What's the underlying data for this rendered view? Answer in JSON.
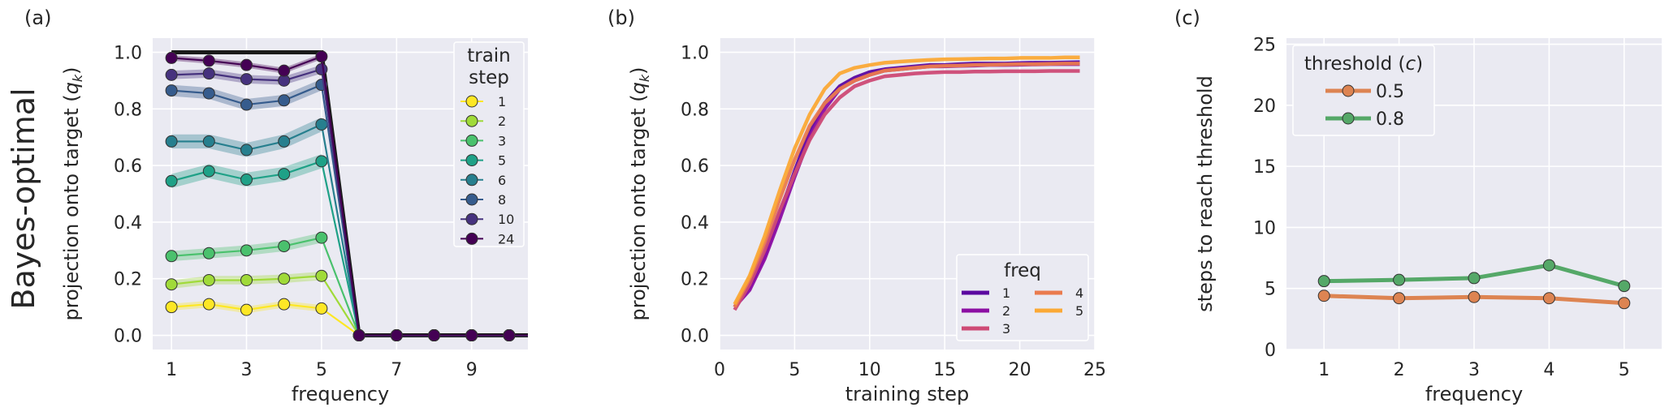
{
  "row_label": "Bayes-optimal",
  "colors": {
    "plot_bg": "#EAEAF2",
    "grid": "#FFFFFF",
    "text": "#262626",
    "target_line": "#1A1A1A"
  },
  "chart_data": [
    {
      "panel": "(a)",
      "type": "line",
      "xlabel": "frequency",
      "ylabel": "projection onto target (q_k)",
      "ylabel_main": "projection onto target (",
      "ylabel_sym": "q",
      "ylabel_sub": "k",
      "ylabel_close": ")",
      "xlim": [
        0.5,
        10.5
      ],
      "ylim": [
        -0.05,
        1.05
      ],
      "xticks": [
        1,
        3,
        5,
        7,
        9
      ],
      "xtick_labels": [
        "1",
        "3",
        "5",
        "7",
        "9"
      ],
      "yticks": [
        0.0,
        0.2,
        0.4,
        0.6,
        0.8,
        1.0
      ],
      "ytick_labels": [
        "0.0",
        "0.2",
        "0.4",
        "0.6",
        "0.8",
        "1.0"
      ],
      "legend_title_line1": "train",
      "legend_title_line2": "step",
      "target": {
        "x": [
          1,
          2,
          3,
          4,
          5,
          6,
          7,
          8,
          9,
          10,
          10.5
        ],
        "y": [
          1,
          1,
          1,
          1,
          1,
          0,
          0,
          0,
          0,
          0,
          0
        ]
      },
      "x": [
        1,
        2,
        3,
        4,
        5,
        6,
        7,
        8,
        9,
        10,
        10.5
      ],
      "series": [
        {
          "name": "1",
          "color": "#FDE725",
          "values": [
            0.1,
            0.11,
            0.09,
            0.11,
            0.095,
            0,
            0,
            0,
            0,
            0,
            0
          ],
          "band": 0.012
        },
        {
          "name": "2",
          "color": "#A0DA39",
          "values": [
            0.18,
            0.195,
            0.195,
            0.2,
            0.21,
            0,
            0,
            0,
            0,
            0,
            0
          ],
          "band": 0.015
        },
        {
          "name": "3",
          "color": "#4AC16D",
          "values": [
            0.28,
            0.29,
            0.3,
            0.315,
            0.345,
            0,
            0,
            0,
            0,
            0,
            0
          ],
          "band": 0.018
        },
        {
          "name": "5",
          "color": "#1FA187",
          "values": [
            0.545,
            0.58,
            0.55,
            0.57,
            0.615,
            0,
            0,
            0,
            0,
            0,
            0
          ],
          "band": 0.025
        },
        {
          "name": "6",
          "color": "#277F8E",
          "values": [
            0.685,
            0.685,
            0.655,
            0.685,
            0.745,
            0,
            0,
            0,
            0,
            0,
            0
          ],
          "band": 0.025
        },
        {
          "name": "8",
          "color": "#365C8D",
          "values": [
            0.865,
            0.855,
            0.815,
            0.83,
            0.885,
            0,
            0,
            0,
            0,
            0,
            0
          ],
          "band": 0.02
        },
        {
          "name": "10",
          "color": "#46327E",
          "values": [
            0.92,
            0.925,
            0.905,
            0.9,
            0.94,
            0,
            0,
            0,
            0,
            0,
            0
          ],
          "band": 0.015
        },
        {
          "name": "24",
          "color": "#440154",
          "values": [
            0.98,
            0.97,
            0.955,
            0.935,
            0.985,
            0,
            0,
            0,
            0,
            0,
            0
          ],
          "band": 0.01
        }
      ]
    },
    {
      "panel": "(b)",
      "type": "line",
      "xlabel": "training step",
      "ylabel": "projection onto target (q_k)",
      "ylabel_main": "projection onto target (",
      "ylabel_sym": "q",
      "ylabel_sub": "k",
      "ylabel_close": ")",
      "xlim": [
        0,
        25
      ],
      "ylim": [
        -0.05,
        1.05
      ],
      "xticks": [
        0,
        5,
        10,
        15,
        20,
        25
      ],
      "xtick_labels": [
        "0",
        "5",
        "10",
        "15",
        "20",
        "25"
      ],
      "yticks": [
        0.0,
        0.2,
        0.4,
        0.6,
        0.8,
        1.0
      ],
      "ytick_labels": [
        "0.0",
        "0.2",
        "0.4",
        "0.6",
        "0.8",
        "1.0"
      ],
      "legend_title": "freq",
      "x": [
        1,
        2,
        3,
        4,
        5,
        6,
        7,
        8,
        9,
        10,
        11,
        12,
        13,
        14,
        15,
        16,
        17,
        18,
        19,
        20,
        21,
        22,
        23,
        24
      ],
      "series": [
        {
          "name": "1",
          "color": "#5B08A0",
          "values": [
            0.1,
            0.17,
            0.28,
            0.43,
            0.58,
            0.72,
            0.82,
            0.88,
            0.91,
            0.93,
            0.94,
            0.945,
            0.95,
            0.955,
            0.955,
            0.958,
            0.96,
            0.96,
            0.96,
            0.962,
            0.963,
            0.963,
            0.964,
            0.965
          ]
        },
        {
          "name": "2",
          "color": "#8C0FA3",
          "values": [
            0.1,
            0.16,
            0.27,
            0.41,
            0.56,
            0.7,
            0.8,
            0.87,
            0.9,
            0.92,
            0.935,
            0.94,
            0.945,
            0.95,
            0.95,
            0.952,
            0.953,
            0.955,
            0.955,
            0.956,
            0.957,
            0.958,
            0.958,
            0.958
          ]
        },
        {
          "name": "3",
          "color": "#CE4A75",
          "values": [
            0.09,
            0.18,
            0.3,
            0.44,
            0.57,
            0.69,
            0.78,
            0.84,
            0.88,
            0.9,
            0.915,
            0.92,
            0.925,
            0.928,
            0.93,
            0.93,
            0.932,
            0.932,
            0.933,
            0.933,
            0.933,
            0.934,
            0.934,
            0.934
          ]
        },
        {
          "name": "4",
          "color": "#EA7B4D",
          "values": [
            0.1,
            0.2,
            0.33,
            0.48,
            0.62,
            0.74,
            0.82,
            0.87,
            0.9,
            0.92,
            0.935,
            0.94,
            0.945,
            0.95,
            0.952,
            0.953,
            0.955,
            0.956,
            0.957,
            0.958,
            0.958,
            0.959,
            0.96,
            0.96
          ]
        },
        {
          "name": "5",
          "color": "#FBA935",
          "values": [
            0.11,
            0.21,
            0.35,
            0.51,
            0.66,
            0.78,
            0.87,
            0.925,
            0.945,
            0.955,
            0.963,
            0.967,
            0.97,
            0.973,
            0.975,
            0.976,
            0.977,
            0.978,
            0.978,
            0.98,
            0.98,
            0.98,
            0.982,
            0.982
          ]
        }
      ]
    },
    {
      "panel": "(c)",
      "type": "line",
      "xlabel": "frequency",
      "ylabel": "steps to reach threshold",
      "xlim": [
        0.5,
        5.5
      ],
      "ylim": [
        0,
        25.5
      ],
      "xticks": [
        1,
        2,
        3,
        4,
        5
      ],
      "xtick_labels": [
        "1",
        "2",
        "3",
        "4",
        "5"
      ],
      "yticks": [
        0,
        5,
        10,
        15,
        20,
        25
      ],
      "ytick_labels": [
        "0",
        "5",
        "10",
        "15",
        "20",
        "25"
      ],
      "legend_title_main": "threshold (",
      "legend_title_sym": "c",
      "legend_title_close": ")",
      "x": [
        1,
        2,
        3,
        4,
        5
      ],
      "series": [
        {
          "name": "0.5",
          "color": "#DD8452",
          "values": [
            4.4,
            4.2,
            4.3,
            4.2,
            3.8
          ]
        },
        {
          "name": "0.8",
          "color": "#55A868",
          "values": [
            5.6,
            5.7,
            5.85,
            6.9,
            5.2
          ]
        }
      ]
    }
  ]
}
